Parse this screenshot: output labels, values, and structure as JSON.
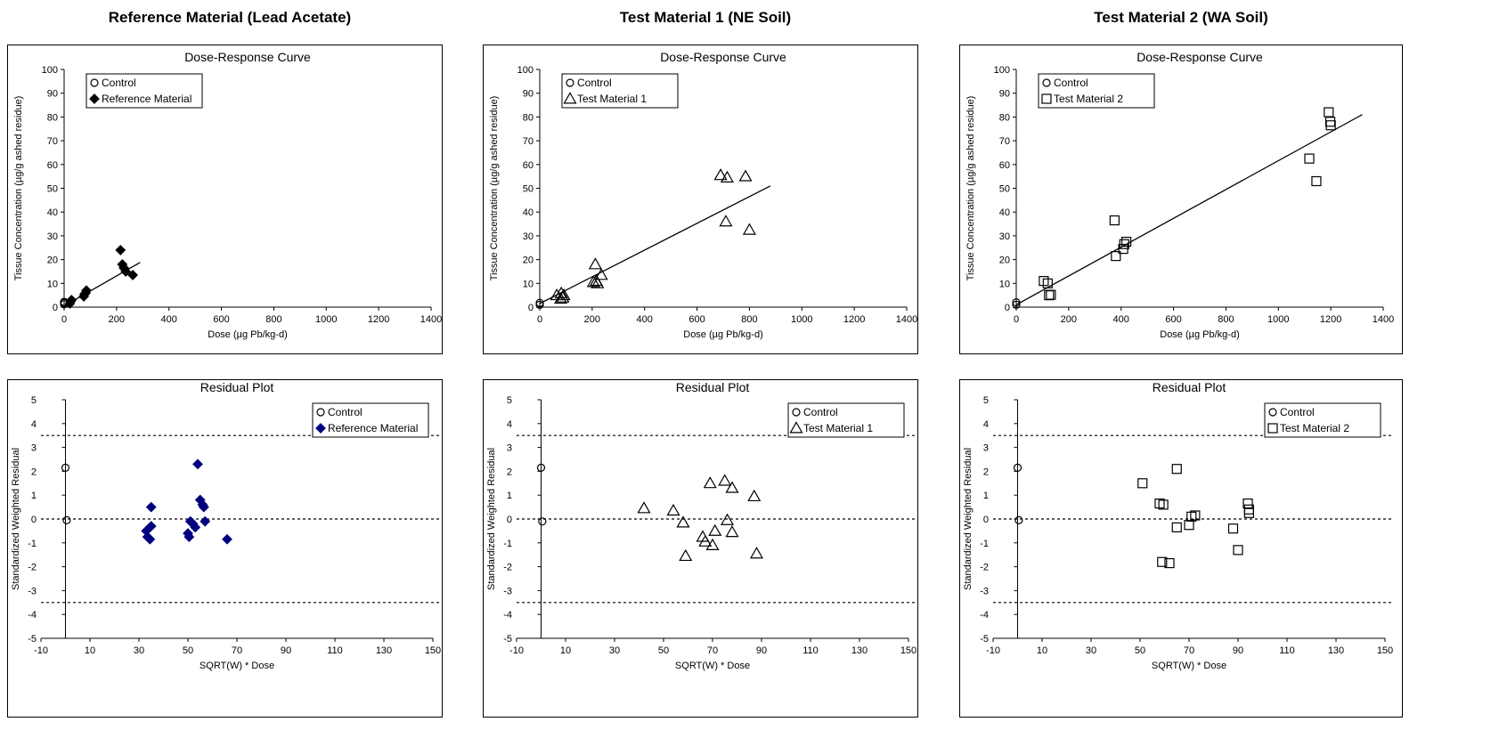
{
  "columns": [
    {
      "title": "Reference Material (Lead Acetate)",
      "dose_response": {
        "title": "Dose-Response Curve",
        "xlabel": "Dose (µg Pb/kg-d)",
        "ylabel": "Tissue Concentration (µg/g ashed residue)",
        "xlim": [
          0,
          1400
        ],
        "ylim": [
          0,
          100
        ],
        "xticks": [
          0,
          200,
          400,
          600,
          800,
          1000,
          1200,
          1400
        ],
        "yticks": [
          0,
          10,
          20,
          30,
          40,
          50,
          60,
          70,
          80,
          90,
          100
        ],
        "legend_position": "top-left",
        "legend": [
          "Control",
          "Reference Material"
        ],
        "marker": "diamond",
        "marker_color": "#000000",
        "control_points": [
          [
            0,
            1.2
          ],
          [
            0,
            1.8
          ],
          [
            0,
            2.2
          ]
        ],
        "points": [
          [
            22,
            1.5
          ],
          [
            25,
            2.5
          ],
          [
            28,
            3.0
          ],
          [
            75,
            4.5
          ],
          [
            78,
            5.5
          ],
          [
            82,
            6.0
          ],
          [
            85,
            7.0
          ],
          [
            215,
            24.0
          ],
          [
            222,
            18.0
          ],
          [
            228,
            16.5
          ],
          [
            235,
            15.0
          ],
          [
            262,
            13.5
          ]
        ],
        "fit_line": [
          [
            0,
            0.5
          ],
          [
            290,
            18.8
          ]
        ]
      },
      "residual": {
        "title": "Residual Plot",
        "xlabel": "SQRT(W) * Dose",
        "ylabel": "Standardized Weighted Residual",
        "xlim": [
          -10,
          150
        ],
        "ylim": [
          -5,
          5
        ],
        "xticks": [
          -10,
          10,
          30,
          50,
          70,
          90,
          110,
          130,
          150
        ],
        "yticks": [
          -5,
          -4,
          -3,
          -2,
          -1,
          0,
          1,
          2,
          3,
          4,
          5
        ],
        "ref_lines": [
          3.5,
          0,
          -3.5
        ],
        "legend_position": "top-right",
        "legend": [
          "Control",
          "Reference Material"
        ],
        "marker": "diamond",
        "marker_color": "#00007f",
        "control_points": [
          [
            0,
            2.15
          ],
          [
            0.5,
            -0.05
          ]
        ],
        "points": [
          [
            33,
            -0.5
          ],
          [
            33.5,
            -0.75
          ],
          [
            34.5,
            -0.85
          ],
          [
            35,
            -0.3
          ],
          [
            35,
            0.5
          ],
          [
            50,
            -0.6
          ],
          [
            50.5,
            -0.75
          ],
          [
            51,
            -0.1
          ],
          [
            52,
            -0.2
          ],
          [
            53,
            -0.35
          ],
          [
            54,
            2.3
          ],
          [
            55,
            0.8
          ],
          [
            56,
            0.6
          ],
          [
            56.5,
            0.5
          ],
          [
            57,
            -0.1
          ],
          [
            66,
            -0.85
          ]
        ]
      }
    },
    {
      "title": "Test Material 1 (NE Soil)",
      "dose_response": {
        "title": "Dose-Response Curve",
        "xlabel": "Dose (µg Pb/kg-d)",
        "ylabel": "Tissue Concentration (µg/g ashed residue)",
        "xlim": [
          0,
          1400
        ],
        "ylim": [
          0,
          100
        ],
        "xticks": [
          0,
          200,
          400,
          600,
          800,
          1000,
          1200,
          1400
        ],
        "yticks": [
          0,
          10,
          20,
          30,
          40,
          50,
          60,
          70,
          80,
          90,
          100
        ],
        "legend_position": "top-left",
        "legend": [
          "Control",
          "Test Material 1"
        ],
        "marker": "triangle",
        "marker_color": "#000000",
        "control_points": [
          [
            0,
            1.0
          ],
          [
            0,
            1.8
          ]
        ],
        "points": [
          [
            65,
            5.0
          ],
          [
            80,
            3.5
          ],
          [
            82,
            5.8
          ],
          [
            88,
            4.0
          ],
          [
            92,
            5.0
          ],
          [
            205,
            10.5
          ],
          [
            212,
            18.0
          ],
          [
            216,
            11.0
          ],
          [
            220,
            10.0
          ],
          [
            235,
            13.5
          ],
          [
            690,
            55.5
          ],
          [
            715,
            54.5
          ],
          [
            710,
            36.0
          ],
          [
            785,
            55.0
          ],
          [
            800,
            32.5
          ]
        ],
        "fit_line": [
          [
            0,
            1.5
          ],
          [
            880,
            51.0
          ]
        ]
      },
      "residual": {
        "title": "Residual Plot",
        "xlabel": "SQRT(W) * Dose",
        "ylabel": "Standardized Weighted Residual",
        "xlim": [
          -10,
          150
        ],
        "ylim": [
          -5,
          5
        ],
        "xticks": [
          -10,
          10,
          30,
          50,
          70,
          90,
          110,
          130,
          150
        ],
        "yticks": [
          -5,
          -4,
          -3,
          -2,
          -1,
          0,
          1,
          2,
          3,
          4,
          5
        ],
        "ref_lines": [
          3.5,
          0,
          -3.5
        ],
        "legend_position": "top-right",
        "legend": [
          "Control",
          "Test Material 1"
        ],
        "marker": "triangle",
        "marker_color": "#000000",
        "control_points": [
          [
            0,
            2.15
          ],
          [
            0.5,
            -0.1
          ]
        ],
        "points": [
          [
            42,
            0.45
          ],
          [
            54,
            0.35
          ],
          [
            58,
            -0.15
          ],
          [
            59,
            -1.55
          ],
          [
            66,
            -0.75
          ],
          [
            67,
            -0.95
          ],
          [
            69,
            1.5
          ],
          [
            70,
            -1.1
          ],
          [
            71,
            -0.5
          ],
          [
            75,
            1.6
          ],
          [
            76,
            -0.05
          ],
          [
            78,
            1.3
          ],
          [
            78,
            -0.55
          ],
          [
            87,
            0.95
          ],
          [
            88,
            -1.45
          ]
        ]
      }
    },
    {
      "title": "Test Material 2 (WA Soil)",
      "dose_response": {
        "title": "Dose-Response Curve",
        "xlabel": "Dose (µg Pb/kg-d)",
        "ylabel": "Tissue Concentration (µg/g ashed residue)",
        "xlim": [
          0,
          1400
        ],
        "ylim": [
          0,
          100
        ],
        "xticks": [
          0,
          200,
          400,
          600,
          800,
          1000,
          1200,
          1400
        ],
        "yticks": [
          0,
          10,
          20,
          30,
          40,
          50,
          60,
          70,
          80,
          90,
          100
        ],
        "legend_position": "top-left",
        "legend": [
          "Control",
          "Test Material 2"
        ],
        "marker": "square",
        "marker_color": "#000000",
        "control_points": [
          [
            0,
            1.0
          ],
          [
            0,
            2.0
          ]
        ],
        "points": [
          [
            105,
            11.0
          ],
          [
            120,
            10.0
          ],
          [
            125,
            5.0
          ],
          [
            132,
            5.2
          ],
          [
            375,
            36.5
          ],
          [
            380,
            21.5
          ],
          [
            408,
            24.5
          ],
          [
            412,
            26.5
          ],
          [
            420,
            27.5
          ],
          [
            1118,
            62.5
          ],
          [
            1145,
            53.0
          ],
          [
            1192,
            82.0
          ],
          [
            1198,
            78.0
          ],
          [
            1200,
            76.5
          ]
        ],
        "fit_line": [
          [
            0,
            1.0
          ],
          [
            1320,
            81.0
          ]
        ]
      },
      "residual": {
        "title": "Residual Plot",
        "xlabel": "SQRT(W) * Dose",
        "ylabel": "Standardized Weighted Residual",
        "xlim": [
          -10,
          150
        ],
        "ylim": [
          -5,
          5
        ],
        "xticks": [
          -10,
          10,
          30,
          50,
          70,
          90,
          110,
          130,
          150
        ],
        "yticks": [
          -5,
          -4,
          -3,
          -2,
          -1,
          0,
          1,
          2,
          3,
          4,
          5
        ],
        "ref_lines": [
          3.5,
          0,
          -3.5
        ],
        "legend_position": "top-right",
        "legend": [
          "Control",
          "Test Material 2"
        ],
        "marker": "square",
        "marker_color": "#000000",
        "control_points": [
          [
            0,
            2.15
          ],
          [
            0.5,
            -0.05
          ]
        ],
        "points": [
          [
            51,
            1.5
          ],
          [
            58,
            0.65
          ],
          [
            59.5,
            0.6
          ],
          [
            59,
            -1.8
          ],
          [
            62,
            -1.85
          ],
          [
            65,
            2.1
          ],
          [
            65,
            -0.35
          ],
          [
            70,
            -0.25
          ],
          [
            71,
            0.1
          ],
          [
            72.5,
            0.15
          ],
          [
            88,
            -0.4
          ],
          [
            90,
            -1.3
          ],
          [
            94,
            0.65
          ],
          [
            94.5,
            0.4
          ],
          [
            94.5,
            0.25
          ]
        ]
      }
    }
  ]
}
